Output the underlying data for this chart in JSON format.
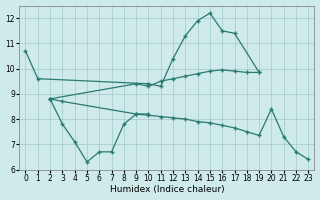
{
  "xlabel": "Humidex (Indice chaleur)",
  "bg_color": "#ceeaea",
  "grid_color": "#aacece",
  "line_color": "#2a7a70",
  "xlim": [
    -0.5,
    23.5
  ],
  "ylim": [
    6,
    12.5
  ],
  "yticks": [
    6,
    7,
    8,
    9,
    10,
    11,
    12
  ],
  "xticks": [
    0,
    1,
    2,
    3,
    4,
    5,
    6,
    7,
    8,
    9,
    10,
    11,
    12,
    13,
    14,
    15,
    16,
    17,
    18,
    19,
    20,
    21,
    22,
    23
  ],
  "curve1_x": [
    0,
    1,
    10,
    11,
    12,
    13,
    14,
    15,
    16,
    17,
    19
  ],
  "curve1_y": [
    10.7,
    9.6,
    9.4,
    9.3,
    10.4,
    11.3,
    11.9,
    12.2,
    11.5,
    11.4,
    9.85
  ],
  "curve2_x": [
    2,
    9,
    10,
    11,
    12,
    13,
    14,
    15,
    16,
    17,
    18,
    19
  ],
  "curve2_y": [
    8.8,
    9.4,
    9.3,
    9.5,
    9.6,
    9.7,
    9.8,
    9.9,
    9.95,
    9.9,
    9.85,
    9.85
  ],
  "curve3_x": [
    2,
    3,
    4,
    5,
    6,
    7,
    8,
    9,
    10
  ],
  "curve3_y": [
    8.8,
    7.8,
    7.1,
    6.3,
    6.7,
    6.7,
    7.8,
    8.2,
    8.2
  ],
  "curve4_x": [
    2,
    3,
    9,
    10,
    11,
    12,
    13,
    14,
    15,
    16,
    17,
    18,
    19,
    20,
    21,
    22,
    23
  ],
  "curve4_y": [
    8.8,
    8.7,
    8.2,
    8.15,
    8.1,
    8.05,
    8.0,
    7.9,
    7.85,
    7.75,
    7.65,
    7.5,
    7.35,
    8.4,
    7.3,
    6.7,
    6.4
  ]
}
